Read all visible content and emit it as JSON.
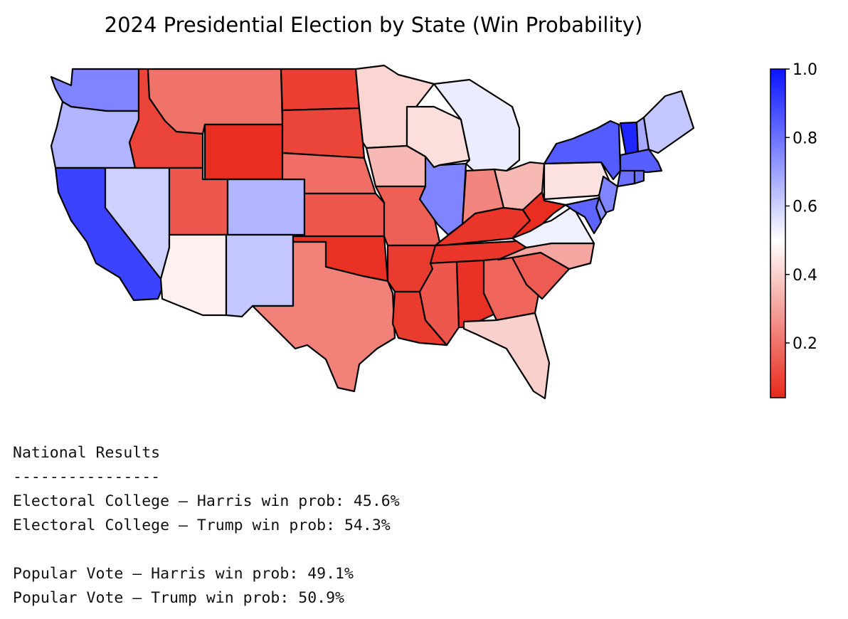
{
  "title": "2024 Presidential Election by State (Win Probability)",
  "map_data": {
    "metric": "Harris win probability",
    "color_scale": {
      "low": "#e8281b",
      "mid": "#ffffff",
      "high": "#0a14ff",
      "min": 0.04,
      "max": 1.0,
      "midpoint": 0.5
    },
    "states": {
      "WA": 0.76,
      "OR": 0.66,
      "CA": 0.9,
      "NV": 0.6,
      "ID": 0.1,
      "MT": 0.2,
      "WY": 0.05,
      "UT": 0.14,
      "CO": 0.66,
      "AZ": 0.47,
      "NM": 0.62,
      "ND": 0.09,
      "SD": 0.1,
      "NE": 0.19,
      "KS": 0.14,
      "OK": 0.06,
      "TX": 0.23,
      "MN": 0.41,
      "IA": 0.35,
      "MO": 0.16,
      "AR": 0.08,
      "LA": 0.08,
      "WI": 0.43,
      "IL": 0.76,
      "MI": 0.54,
      "IN": 0.24,
      "OH": 0.35,
      "KY": 0.07,
      "TN": 0.07,
      "MS": 0.14,
      "AL": 0.06,
      "GA": 0.17,
      "FL": 0.4,
      "SC": 0.15,
      "NC": 0.31,
      "VA": 0.53,
      "WV": 0.05,
      "PA": 0.44,
      "NY": 0.85,
      "VT": 0.96,
      "NH": 0.68,
      "ME": 0.62,
      "MA": 0.84,
      "CT": 0.8,
      "RI": 0.8,
      "NJ": 0.76,
      "DE": 0.74,
      "MD": 0.83
    }
  },
  "colorbar": {
    "ticks": [
      "0.2",
      "0.4",
      "0.6",
      "0.8",
      "1.0"
    ]
  },
  "results": {
    "heading": "National Results",
    "divider": "----------------",
    "ec_harris": "Electoral College – Harris win prob: 45.6%",
    "ec_trump": "Electoral College – Trump win prob: 54.3%",
    "pv_harris": "Popular Vote – Harris win prob: 49.1%",
    "pv_trump": "Popular Vote – Trump win prob: 50.9%"
  }
}
